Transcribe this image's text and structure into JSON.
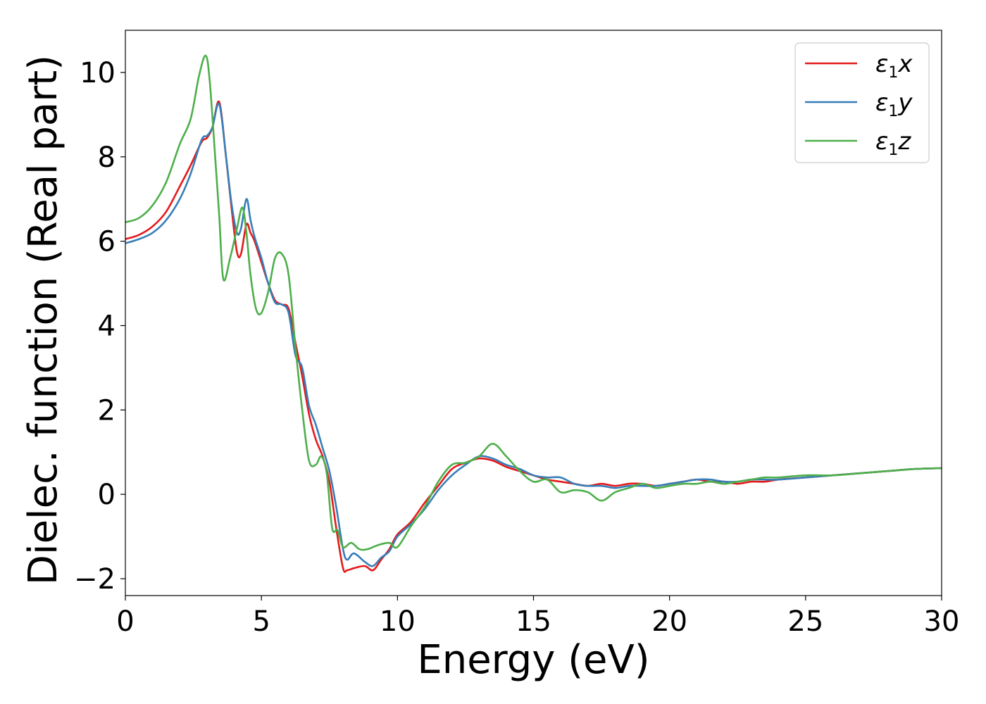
{
  "chart_data": {
    "type": "line",
    "title": "",
    "xlabel": "Energy (eV)",
    "ylabel": "Dielec. function (Real part)",
    "xlim": [
      0,
      30
    ],
    "ylim": [
      -2.4,
      11.0
    ],
    "xticks": [
      0,
      5,
      10,
      15,
      20,
      25,
      30
    ],
    "yticks": [
      -2,
      0,
      2,
      4,
      6,
      8,
      10
    ],
    "ytick_labels": [
      "−2",
      "0",
      "2",
      "4",
      "6",
      "8",
      "10"
    ],
    "grid": false,
    "legend_position": "top-right",
    "series": [
      {
        "name": "ε1x",
        "legend_symbol": "ε",
        "legend_subscript": "1",
        "legend_suffix": "x",
        "color": "#e41a1c",
        "x": [
          0,
          0.5,
          1.0,
          1.5,
          2.0,
          2.4,
          2.8,
          3.0,
          3.2,
          3.45,
          3.7,
          3.9,
          4.1,
          4.25,
          4.45,
          4.6,
          4.75,
          5.0,
          5.25,
          5.5,
          5.75,
          6.0,
          6.25,
          6.5,
          6.75,
          7.0,
          7.25,
          7.5,
          7.75,
          8.0,
          8.15,
          8.4,
          8.8,
          9.1,
          9.4,
          9.7,
          10.0,
          10.5,
          11.0,
          11.5,
          12.0,
          12.5,
          13.0,
          13.5,
          14.0,
          14.5,
          15.0,
          15.5,
          16.0,
          16.5,
          17.0,
          17.5,
          18.0,
          18.5,
          19.0,
          19.5,
          20.0,
          20.5,
          21.0,
          21.5,
          22.0,
          22.5,
          23.0,
          23.5,
          24.0,
          25.0,
          26.0,
          27.0,
          28.0,
          29.0,
          30.0
        ],
        "values": [
          6.05,
          6.15,
          6.35,
          6.7,
          7.3,
          7.8,
          8.35,
          8.45,
          8.7,
          9.3,
          8.0,
          6.8,
          5.75,
          5.7,
          6.4,
          6.2,
          6.0,
          5.5,
          5.0,
          4.6,
          4.5,
          4.4,
          3.6,
          2.8,
          1.9,
          1.3,
          0.9,
          0.3,
          -0.8,
          -1.75,
          -1.8,
          -1.75,
          -1.7,
          -1.8,
          -1.55,
          -1.3,
          -0.95,
          -0.65,
          -0.2,
          0.2,
          0.6,
          0.75,
          0.85,
          0.8,
          0.65,
          0.55,
          0.45,
          0.35,
          0.3,
          0.25,
          0.2,
          0.25,
          0.2,
          0.25,
          0.25,
          0.2,
          0.25,
          0.3,
          0.35,
          0.3,
          0.3,
          0.25,
          0.3,
          0.3,
          0.35,
          0.4,
          0.45,
          0.5,
          0.55,
          0.6,
          0.62
        ]
      },
      {
        "name": "ε1y",
        "legend_symbol": "ε",
        "legend_subscript": "1",
        "legend_suffix": "y",
        "color": "#377eb8",
        "x": [
          0,
          0.5,
          1.0,
          1.5,
          2.0,
          2.4,
          2.8,
          3.0,
          3.2,
          3.45,
          3.7,
          3.9,
          4.1,
          4.25,
          4.45,
          4.6,
          4.75,
          5.0,
          5.25,
          5.5,
          5.75,
          6.0,
          6.25,
          6.5,
          6.75,
          7.0,
          7.25,
          7.5,
          7.75,
          8.0,
          8.15,
          8.4,
          8.8,
          9.1,
          9.4,
          9.7,
          10.0,
          10.5,
          11.0,
          11.5,
          12.0,
          12.5,
          13.0,
          13.5,
          14.0,
          14.5,
          15.0,
          15.5,
          16.0,
          16.5,
          17.0,
          17.5,
          18.0,
          18.5,
          19.0,
          19.5,
          20.0,
          20.5,
          21.0,
          21.5,
          22.0,
          22.5,
          23.0,
          23.5,
          24.0,
          25.0,
          26.0,
          27.0,
          28.0,
          29.0,
          30.0
        ],
        "values": [
          5.95,
          6.05,
          6.2,
          6.5,
          7.0,
          7.6,
          8.4,
          8.5,
          8.7,
          9.25,
          8.0,
          6.9,
          6.2,
          6.3,
          7.0,
          6.5,
          6.1,
          5.6,
          5.0,
          4.55,
          4.5,
          4.3,
          3.3,
          3.0,
          2.1,
          1.65,
          1.1,
          0.55,
          -0.3,
          -1.3,
          -1.55,
          -1.4,
          -1.6,
          -1.7,
          -1.5,
          -1.35,
          -1.0,
          -0.7,
          -0.35,
          0.1,
          0.45,
          0.7,
          0.9,
          0.85,
          0.7,
          0.6,
          0.45,
          0.4,
          0.4,
          0.25,
          0.2,
          0.2,
          0.15,
          0.2,
          0.2,
          0.2,
          0.25,
          0.3,
          0.35,
          0.35,
          0.3,
          0.3,
          0.35,
          0.35,
          0.35,
          0.4,
          0.45,
          0.5,
          0.55,
          0.6,
          0.62
        ]
      },
      {
        "name": "ε1z",
        "legend_symbol": "ε",
        "legend_subscript": "1",
        "legend_suffix": "z",
        "color": "#4daf4a",
        "x": [
          0,
          0.5,
          1.0,
          1.5,
          2.0,
          2.4,
          2.7,
          2.95,
          3.1,
          3.3,
          3.45,
          3.6,
          3.85,
          4.1,
          4.3,
          4.45,
          4.6,
          4.8,
          5.0,
          5.25,
          5.5,
          5.75,
          6.0,
          6.25,
          6.5,
          6.75,
          7.0,
          7.2,
          7.4,
          7.6,
          7.8,
          8.0,
          8.3,
          8.6,
          8.9,
          9.3,
          9.7,
          10.0,
          10.5,
          11.0,
          11.5,
          12.0,
          12.5,
          13.0,
          13.5,
          14.0,
          14.5,
          15.0,
          15.5,
          16.0,
          16.5,
          17.0,
          17.5,
          18.0,
          18.5,
          19.0,
          19.5,
          20.0,
          20.5,
          21.0,
          21.5,
          22.0,
          22.5,
          23.0,
          23.5,
          24.0,
          25.0,
          26.0,
          27.0,
          28.0,
          29.0,
          30.0
        ],
        "values": [
          6.45,
          6.55,
          6.85,
          7.4,
          8.3,
          8.9,
          9.9,
          10.4,
          9.8,
          8.0,
          6.6,
          5.1,
          5.6,
          6.3,
          6.8,
          6.2,
          5.2,
          4.4,
          4.3,
          4.8,
          5.6,
          5.7,
          5.2,
          3.5,
          2.0,
          0.8,
          0.7,
          0.9,
          0.5,
          -0.8,
          -0.85,
          -1.25,
          -1.15,
          -1.3,
          -1.3,
          -1.2,
          -1.15,
          -1.25,
          -0.75,
          -0.3,
          0.3,
          0.7,
          0.75,
          0.9,
          1.2,
          0.9,
          0.55,
          0.3,
          0.35,
          0.05,
          0.1,
          0.05,
          -0.15,
          0.05,
          0.15,
          0.25,
          0.15,
          0.2,
          0.25,
          0.25,
          0.3,
          0.25,
          0.3,
          0.35,
          0.4,
          0.4,
          0.45,
          0.45,
          0.5,
          0.55,
          0.6,
          0.62
        ]
      }
    ]
  }
}
